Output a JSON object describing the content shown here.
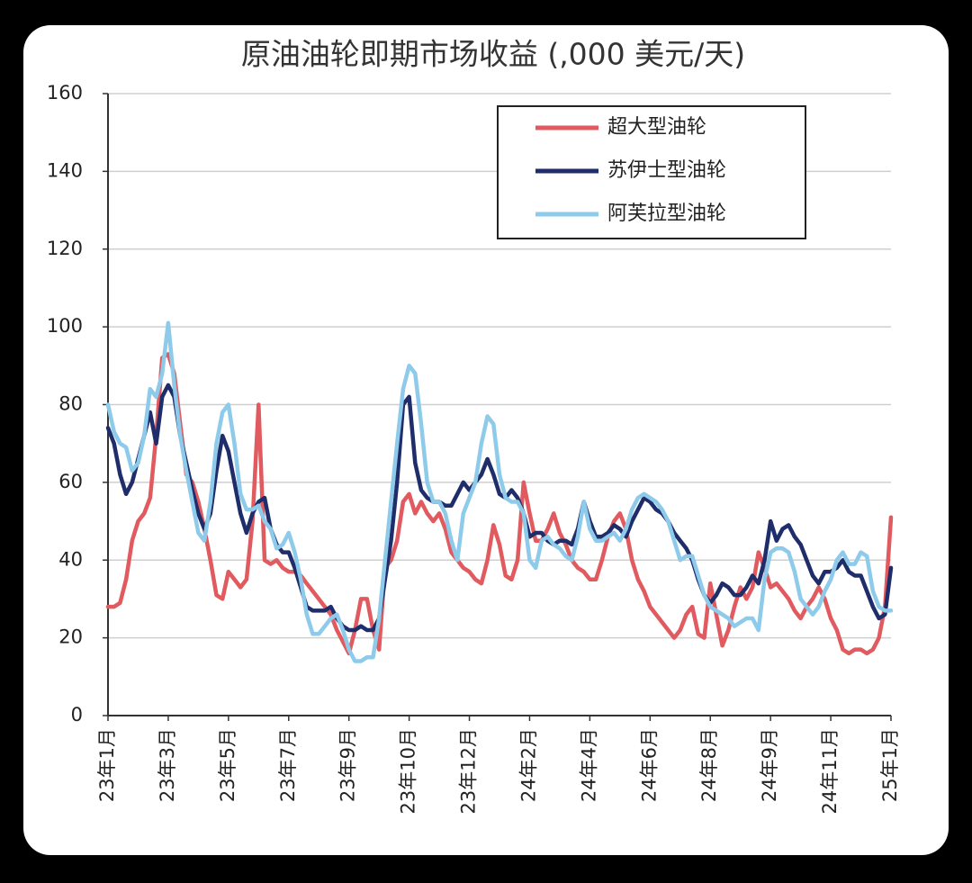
{
  "chart_data": {
    "type": "line",
    "title": "原油油轮即期市场收益 (,000 美元/天)",
    "categories": [
      "23年1月",
      null,
      null,
      null,
      null,
      null,
      null,
      null,
      null,
      null,
      "23年3月",
      null,
      null,
      null,
      null,
      null,
      null,
      null,
      null,
      null,
      "23年5月",
      null,
      null,
      null,
      null,
      null,
      null,
      null,
      null,
      null,
      "23年7月",
      null,
      null,
      null,
      null,
      null,
      null,
      null,
      null,
      null,
      "23年9月",
      null,
      null,
      null,
      null,
      null,
      null,
      null,
      null,
      null,
      "23年10月",
      null,
      null,
      null,
      null,
      null,
      null,
      null,
      null,
      null,
      "23年12月",
      null,
      null,
      null,
      null,
      null,
      null,
      null,
      null,
      null,
      "24年2月",
      null,
      null,
      null,
      null,
      null,
      null,
      null,
      null,
      null,
      "24年4月",
      null,
      null,
      null,
      null,
      null,
      null,
      null,
      null,
      null,
      "24年6月",
      null,
      null,
      null,
      null,
      null,
      null,
      null,
      null,
      null,
      "24年8月",
      null,
      null,
      null,
      null,
      null,
      null,
      null,
      null,
      null,
      "24年9月",
      null,
      null,
      null,
      null,
      null,
      null,
      null,
      null,
      null,
      "24年11月",
      null,
      null,
      null,
      null,
      null,
      null,
      null,
      null,
      null,
      "25年1月"
    ],
    "series": [
      {
        "name": "超大型油轮",
        "color": "#e05a5f",
        "values": [
          28,
          28,
          29,
          35,
          45,
          50,
          52,
          56,
          72,
          92,
          93,
          88,
          75,
          62,
          60,
          55,
          48,
          40,
          31,
          30,
          37,
          35,
          33,
          35,
          50,
          80,
          40,
          39,
          40,
          38,
          37,
          37,
          36,
          34,
          32,
          30,
          28,
          26,
          22,
          19,
          16,
          22,
          30,
          30,
          22,
          17,
          38,
          40,
          45,
          55,
          57,
          52,
          55,
          52,
          50,
          52,
          48,
          42,
          40,
          38,
          37,
          35,
          34,
          40,
          49,
          44,
          36,
          35,
          40,
          60,
          52,
          45,
          45,
          48,
          52,
          47,
          44,
          40,
          38,
          37,
          35,
          35,
          40,
          46,
          50,
          52,
          48,
          40,
          35,
          32,
          28,
          26,
          24,
          22,
          20,
          22,
          26,
          28,
          21,
          20,
          34,
          26,
          18,
          22,
          28,
          33,
          30,
          33,
          42,
          38,
          33,
          34,
          32,
          30,
          27,
          25,
          28,
          30,
          33,
          30,
          25,
          22,
          17,
          16,
          17,
          17,
          16,
          17,
          20,
          28,
          51
        ]
      },
      {
        "name": "苏伊士型油轮",
        "color": "#1f2d6b",
        "values": [
          74,
          70,
          62,
          57,
          60,
          66,
          72,
          78,
          70,
          82,
          85,
          82,
          72,
          65,
          58,
          52,
          48,
          52,
          63,
          72,
          68,
          60,
          52,
          47,
          52,
          55,
          56,
          48,
          44,
          42,
          42,
          38,
          33,
          28,
          27,
          27,
          27,
          28,
          25,
          23,
          22,
          22,
          23,
          22,
          22,
          25,
          35,
          45,
          60,
          80,
          82,
          65,
          58,
          56,
          55,
          55,
          54,
          54,
          57,
          60,
          58,
          60,
          62,
          66,
          62,
          57,
          56,
          58,
          56,
          52,
          46,
          47,
          47,
          45,
          44,
          45,
          45,
          44,
          48,
          55,
          50,
          46,
          46,
          47,
          49,
          48,
          46,
          50,
          53,
          56,
          55,
          53,
          52,
          50,
          47,
          45,
          43,
          40,
          35,
          31,
          29,
          31,
          34,
          33,
          31,
          31,
          33,
          36,
          34,
          40,
          50,
          45,
          48,
          49,
          46,
          44,
          40,
          36,
          34,
          37,
          37,
          38,
          40,
          37,
          36,
          36,
          32,
          28,
          25,
          26,
          38
        ]
      },
      {
        "name": "阿芙拉型油轮",
        "color": "#8ecbeb",
        "values": [
          80,
          73,
          70,
          69,
          63,
          65,
          72,
          84,
          82,
          88,
          101,
          85,
          72,
          63,
          55,
          47,
          45,
          55,
          70,
          78,
          80,
          70,
          57,
          53,
          53,
          54,
          50,
          48,
          43,
          44,
          47,
          42,
          35,
          26,
          21,
          21,
          23,
          25,
          26,
          22,
          17,
          14,
          14,
          15,
          15,
          25,
          40,
          55,
          70,
          84,
          90,
          88,
          75,
          60,
          55,
          55,
          52,
          45,
          40,
          52,
          56,
          60,
          70,
          77,
          75,
          62,
          56,
          55,
          55,
          52,
          40,
          38,
          45,
          46,
          44,
          43,
          41,
          40,
          46,
          55,
          48,
          45,
          45,
          46,
          47,
          45,
          48,
          53,
          56,
          57,
          56,
          55,
          53,
          50,
          45,
          40,
          41,
          41,
          36,
          31,
          28,
          27,
          26,
          25,
          23,
          24,
          25,
          25,
          22,
          35,
          42,
          43,
          43,
          42,
          37,
          30,
          28,
          26,
          28,
          32,
          35,
          40,
          42,
          39,
          39,
          42,
          41,
          32,
          28,
          27,
          27
        ]
      }
    ],
    "ylim": [
      0,
      160
    ],
    "yticks": [
      0,
      20,
      40,
      60,
      80,
      100,
      120,
      140,
      160
    ],
    "grid": true,
    "legend": "top-right"
  }
}
